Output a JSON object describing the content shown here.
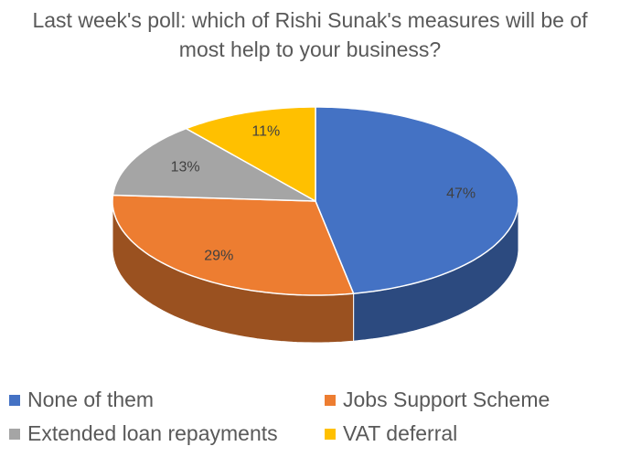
{
  "chart_data": {
    "type": "pie",
    "title": "Last week's poll: which of Rishi Sunak's measures will be of most help to your business?",
    "categories": [
      "None of them",
      "Jobs Support Scheme",
      "Extended loan repayments",
      "VAT deferral"
    ],
    "values": [
      47,
      29,
      13,
      11
    ],
    "value_labels": [
      "47%",
      "29%",
      "13%",
      "11%"
    ],
    "colors": [
      "#4472c4",
      "#ed7d31",
      "#a5a5a5",
      "#ffc000"
    ],
    "legend": "bottom"
  }
}
